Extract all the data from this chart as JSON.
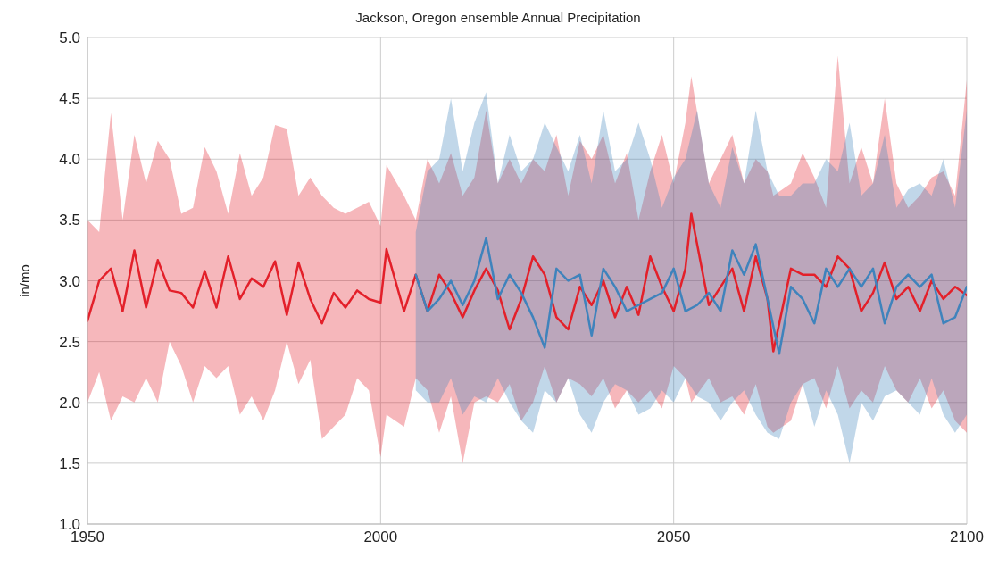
{
  "chart_data": {
    "type": "line",
    "title": "Jackson, Oregon ensemble Annual Precipitation",
    "ylabel": "in/mo",
    "xlim": [
      1950,
      2100
    ],
    "xticks": [
      1950,
      2000,
      2050,
      2100
    ],
    "ylim": [
      1.0,
      5.0
    ],
    "yticks": [
      {
        "value": 1,
        "label": "1.0"
      },
      1.5,
      {
        "value": 2,
        "label": "2.0"
      },
      2.5,
      {
        "value": 3,
        "label": "3.0"
      },
      3.5,
      {
        "value": 4,
        "label": "4.0"
      },
      4.5,
      {
        "value": 5,
        "label": "5.0"
      }
    ],
    "grid": true,
    "marker": "none",
    "line_style": "solid",
    "series": [
      {
        "color": "#e3202a",
        "x": [
          1950,
          1952,
          1954,
          1956,
          1958,
          1960,
          1962,
          1964,
          1966,
          1968,
          1970,
          1972,
          1974,
          1976,
          1978,
          1980,
          1982,
          1984,
          1986,
          1988,
          1990,
          1992,
          1994,
          1996,
          1998,
          2000,
          2001,
          2004,
          2006,
          2008,
          2010,
          2012,
          2014,
          2016,
          2018,
          2020,
          2022,
          2024,
          2026,
          2028,
          2030,
          2032,
          2034,
          2036,
          2038,
          2040,
          2042,
          2044,
          2046,
          2048,
          2050,
          2052,
          2053,
          2056,
          2058,
          2060,
          2062,
          2064,
          2066,
          2067,
          2070,
          2072,
          2074,
          2076,
          2078,
          2080,
          2082,
          2084,
          2086,
          2088,
          2090,
          2092,
          2094,
          2096,
          2098,
          2100
        ],
        "values": [
          2.67,
          3.0,
          3.1,
          2.75,
          3.25,
          2.78,
          3.17,
          2.92,
          2.9,
          2.78,
          3.08,
          2.78,
          3.2,
          2.85,
          3.02,
          2.95,
          3.16,
          2.72,
          3.15,
          2.85,
          2.65,
          2.9,
          2.78,
          2.92,
          2.85,
          2.82,
          3.26,
          2.75,
          3.05,
          2.75,
          3.05,
          2.9,
          2.7,
          2.92,
          3.1,
          2.92,
          2.6,
          2.85,
          3.2,
          3.05,
          2.7,
          2.6,
          2.95,
          2.8,
          3.0,
          2.7,
          2.95,
          2.72,
          3.2,
          2.95,
          2.75,
          3.1,
          3.55,
          2.8,
          2.95,
          3.1,
          2.75,
          3.2,
          2.85,
          2.42,
          3.1,
          3.05,
          3.05,
          2.95,
          3.2,
          3.1,
          2.75,
          2.9,
          3.15,
          2.85,
          2.95,
          2.75,
          3.0,
          2.85,
          2.95,
          2.88
        ],
        "upper": [
          3.5,
          3.4,
          4.38,
          3.5,
          4.2,
          3.8,
          4.15,
          4.0,
          3.55,
          3.6,
          4.1,
          3.9,
          3.55,
          4.05,
          3.7,
          3.85,
          4.28,
          4.25,
          3.7,
          3.85,
          3.7,
          3.6,
          3.55,
          3.6,
          3.65,
          3.45,
          3.95,
          3.7,
          3.5,
          4.0,
          3.8,
          4.05,
          3.7,
          3.85,
          4.4,
          3.8,
          4.0,
          3.8,
          4.0,
          3.9,
          4.2,
          3.7,
          4.15,
          4.0,
          4.2,
          3.8,
          4.05,
          3.5,
          3.9,
          4.2,
          3.8,
          4.3,
          4.68,
          3.8,
          4.0,
          4.2,
          3.8,
          4.0,
          3.9,
          3.7,
          3.8,
          4.05,
          3.85,
          3.6,
          4.85,
          3.8,
          4.1,
          3.8,
          4.5,
          3.8,
          3.6,
          3.7,
          3.85,
          3.9,
          3.7,
          4.65
        ],
        "lower": [
          2.0,
          2.25,
          1.85,
          2.05,
          2.0,
          2.2,
          2.0,
          2.5,
          2.3,
          2.0,
          2.3,
          2.2,
          2.3,
          1.9,
          2.05,
          1.85,
          2.1,
          2.5,
          2.15,
          2.35,
          1.7,
          1.8,
          1.9,
          2.2,
          2.1,
          1.55,
          1.9,
          1.8,
          2.2,
          2.1,
          1.75,
          2.05,
          1.5,
          2.0,
          2.05,
          2.0,
          2.15,
          1.85,
          2.0,
          2.3,
          2.0,
          2.2,
          2.15,
          2.05,
          2.2,
          1.95,
          2.1,
          2.0,
          2.1,
          1.95,
          2.3,
          2.2,
          2.0,
          2.2,
          2.0,
          2.05,
          1.9,
          2.15,
          1.8,
          1.75,
          1.85,
          2.15,
          2.2,
          1.95,
          2.3,
          1.95,
          2.1,
          2.0,
          2.3,
          2.1,
          2.0,
          2.2,
          1.95,
          2.1,
          1.85,
          1.75
        ]
      },
      {
        "color": "#3f83bc",
        "x": [
          2006,
          2008,
          2010,
          2012,
          2014,
          2016,
          2018,
          2020,
          2022,
          2024,
          2026,
          2028,
          2030,
          2032,
          2034,
          2036,
          2038,
          2040,
          2042,
          2044,
          2046,
          2048,
          2050,
          2052,
          2054,
          2056,
          2058,
          2060,
          2062,
          2064,
          2066,
          2068,
          2070,
          2072,
          2074,
          2076,
          2078,
          2080,
          2082,
          2084,
          2086,
          2088,
          2090,
          2092,
          2094,
          2096,
          2098,
          2100
        ],
        "values": [
          3.05,
          2.75,
          2.85,
          3.0,
          2.8,
          3.0,
          3.35,
          2.85,
          3.05,
          2.9,
          2.7,
          2.45,
          3.1,
          3.0,
          3.05,
          2.55,
          3.1,
          2.95,
          2.75,
          2.8,
          2.85,
          2.9,
          3.1,
          2.75,
          2.8,
          2.9,
          2.75,
          3.25,
          3.05,
          3.3,
          2.85,
          2.4,
          2.95,
          2.85,
          2.65,
          3.1,
          2.95,
          3.1,
          2.95,
          3.1,
          2.65,
          2.95,
          3.05,
          2.95,
          3.05,
          2.65,
          2.7,
          2.95
        ],
        "upper": [
          3.4,
          3.9,
          4.0,
          4.5,
          3.9,
          4.3,
          4.55,
          3.8,
          4.2,
          3.9,
          4.0,
          4.3,
          4.1,
          3.9,
          4.2,
          3.8,
          4.4,
          3.9,
          4.0,
          4.3,
          4.0,
          3.6,
          3.85,
          4.0,
          4.4,
          3.8,
          3.6,
          4.1,
          3.8,
          4.4,
          3.9,
          3.7,
          3.7,
          3.8,
          3.8,
          4.0,
          3.9,
          4.3,
          3.7,
          3.8,
          4.2,
          3.6,
          3.75,
          3.8,
          3.7,
          4.0,
          3.6,
          4.4
        ],
        "lower": [
          2.1,
          2.0,
          2.0,
          2.2,
          1.9,
          2.05,
          2.0,
          2.2,
          2.0,
          1.85,
          1.75,
          2.1,
          2.0,
          2.2,
          1.9,
          1.75,
          2.0,
          2.15,
          2.1,
          1.9,
          1.95,
          2.1,
          2.0,
          2.2,
          2.05,
          2.0,
          1.85,
          2.0,
          2.1,
          1.9,
          1.75,
          1.7,
          2.0,
          2.15,
          1.8,
          2.1,
          1.9,
          1.5,
          2.0,
          1.85,
          2.05,
          2.1,
          2.0,
          1.9,
          2.2,
          1.9,
          1.75,
          1.9
        ]
      }
    ]
  }
}
